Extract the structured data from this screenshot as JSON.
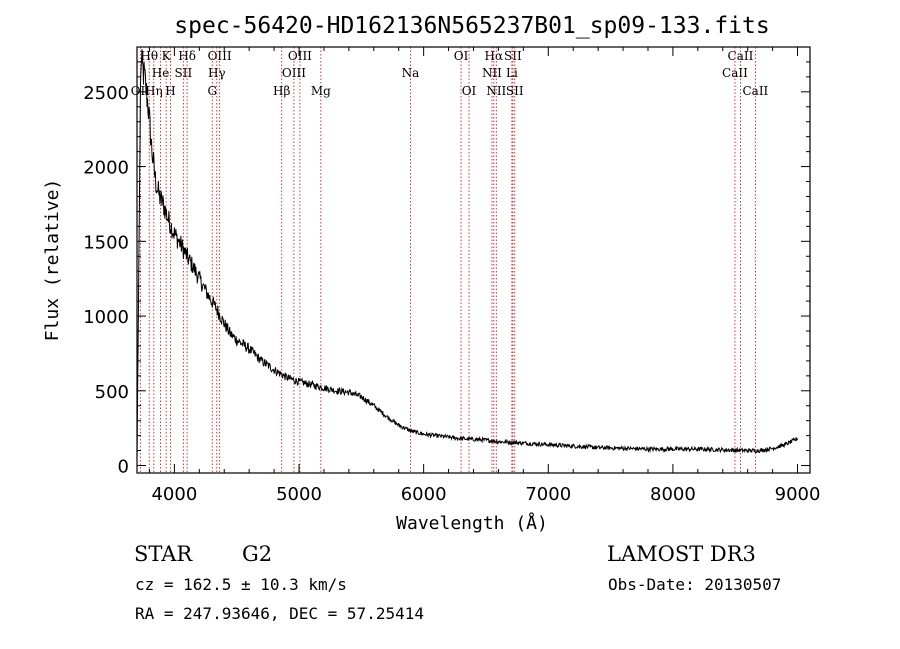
{
  "chart_data": {
    "type": "line",
    "title": "spec-56420-HD162136N565237B01_sp09-133.fits",
    "xlabel": "Wavelength (Å)",
    "ylabel": "Flux (relative)",
    "xlim": [
      3700,
      9100
    ],
    "ylim": [
      -50,
      2800
    ],
    "x_ticks": [
      4000,
      5000,
      6000,
      7000,
      8000,
      9000
    ],
    "y_ticks": [
      0,
      500,
      1000,
      1500,
      2000,
      2500
    ],
    "grid": false,
    "series": [
      {
        "name": "flux",
        "x": [
          3700,
          3730,
          3760,
          3790,
          3820,
          3850,
          3880,
          3910,
          3950,
          4000,
          4050,
          4100,
          4150,
          4200,
          4250,
          4300,
          4350,
          4400,
          4450,
          4500,
          4600,
          4700,
          4800,
          4900,
          5000,
          5100,
          5200,
          5300,
          5400,
          5500,
          5600,
          5700,
          5800,
          5900,
          6000,
          6100,
          6200,
          6300,
          6400,
          6500,
          6600,
          6700,
          6800,
          7000,
          7200,
          7400,
          7600,
          7800,
          8000,
          8200,
          8400,
          8600,
          8700,
          8800,
          8900,
          9000
        ],
        "y": [
          50,
          2700,
          2600,
          2400,
          2100,
          1900,
          1800,
          1750,
          1650,
          1550,
          1480,
          1400,
          1330,
          1250,
          1170,
          1100,
          1030,
          950,
          880,
          840,
          780,
          700,
          640,
          590,
          560,
          540,
          520,
          500,
          490,
          460,
          400,
          330,
          270,
          230,
          210,
          200,
          190,
          180,
          175,
          170,
          160,
          155,
          150,
          140,
          130,
          120,
          115,
          110,
          110,
          110,
          105,
          100,
          100,
          115,
          140,
          180
        ]
      }
    ],
    "line_markers": [
      {
        "label": "OII",
        "wavelength": 3727,
        "row": 3
      },
      {
        "label": "Hθ",
        "wavelength": 3798,
        "row": 1
      },
      {
        "label": "Hη",
        "wavelength": 3835,
        "row": 3
      },
      {
        "label": "He",
        "wavelength": 3889,
        "row": 2
      },
      {
        "label": "K",
        "wavelength": 3934,
        "row": 1
      },
      {
        "label": "SII",
        "wavelength": 4072,
        "row": 2
      },
      {
        "label": "H",
        "wavelength": 3969,
        "row": 3
      },
      {
        "label": "Hδ",
        "wavelength": 4102,
        "row": 1
      },
      {
        "label": "OIII",
        "wavelength": 4363,
        "row": 1
      },
      {
        "label": "Hγ",
        "wavelength": 4340,
        "row": 2
      },
      {
        "label": "G",
        "wavelength": 4304,
        "row": 3
      },
      {
        "label": "Hβ",
        "wavelength": 4861,
        "row": 3
      },
      {
        "label": "OIII",
        "wavelength": 5007,
        "row": 1
      },
      {
        "label": "OIII",
        "wavelength": 4959,
        "row": 2
      },
      {
        "label": "Mg",
        "wavelength": 5175,
        "row": 3
      },
      {
        "label": "Na",
        "wavelength": 5894,
        "row": 2
      },
      {
        "label": "OI",
        "wavelength": 6300,
        "row": 1
      },
      {
        "label": "OI",
        "wavelength": 6364,
        "row": 3
      },
      {
        "label": "Hα",
        "wavelength": 6563,
        "row": 1
      },
      {
        "label": "NII",
        "wavelength": 6548,
        "row": 2
      },
      {
        "label": "NII",
        "wavelength": 6583,
        "row": 3
      },
      {
        "label": "SII",
        "wavelength": 6716,
        "row": 1
      },
      {
        "label": "Li",
        "wavelength": 6708,
        "row": 2
      },
      {
        "label": "SII",
        "wavelength": 6731,
        "row": 3
      },
      {
        "label": "CaII",
        "wavelength": 8542,
        "row": 1
      },
      {
        "label": "CaII",
        "wavelength": 8498,
        "row": 2
      },
      {
        "label": "CaII",
        "wavelength": 8662,
        "row": 3
      }
    ]
  },
  "info": {
    "class": "STAR",
    "subclass": "G2",
    "survey": "LAMOST DR3",
    "cz": "cz = 162.5 ± 10.3 km/s",
    "obs_date": "Obs-Date: 20130507",
    "coords": "RA = 247.93646, DEC =  57.25414"
  }
}
